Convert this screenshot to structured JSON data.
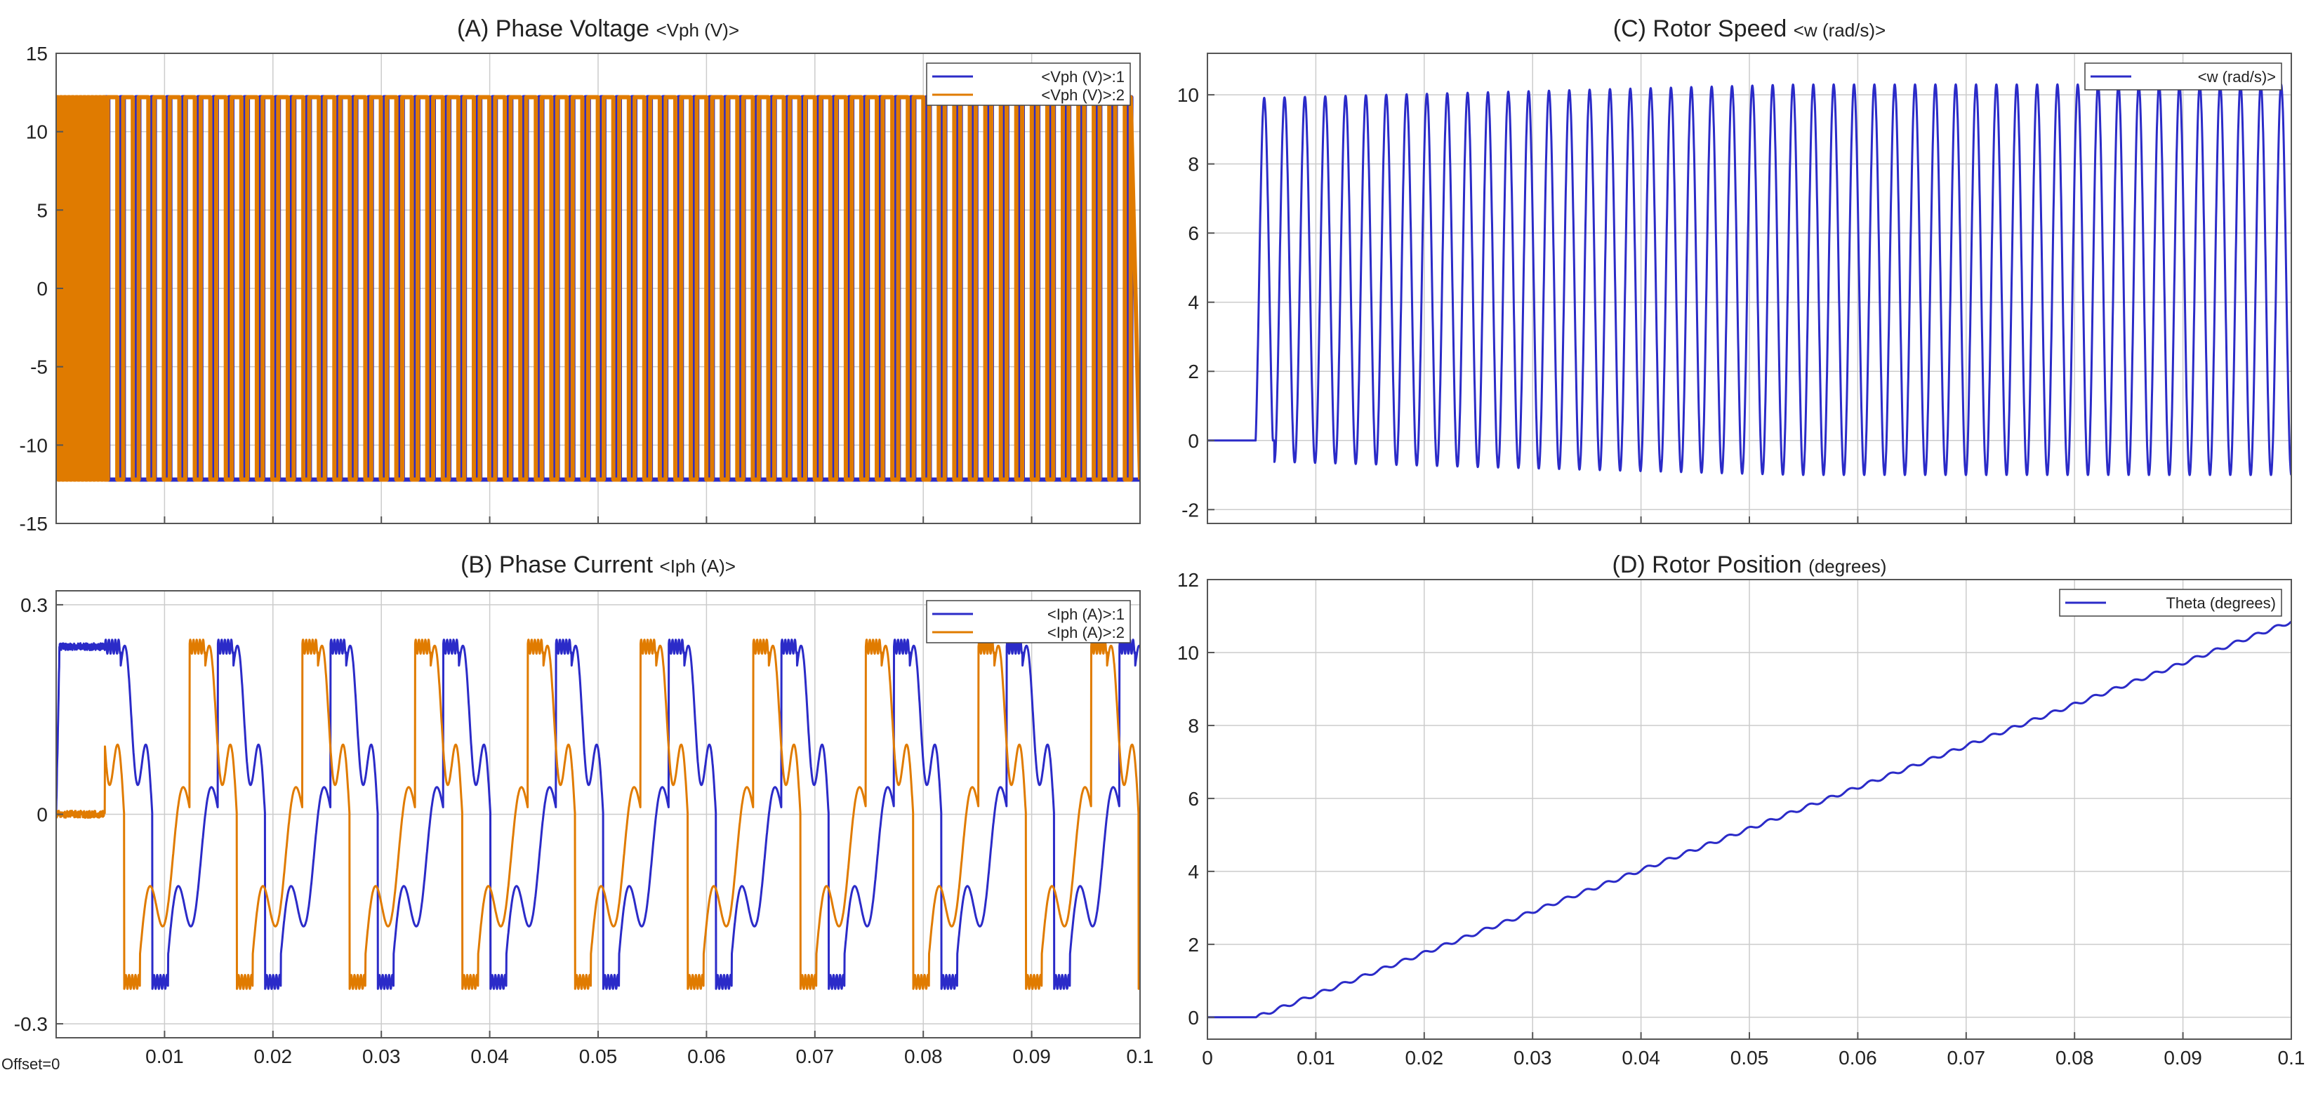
{
  "figure": {
    "offset_label": "Offset=0"
  },
  "colors": {
    "series1": "#2b2bc8",
    "series2": "#e07b00",
    "grid": "#cccccc",
    "axis": "#555555"
  },
  "chart_data": [
    {
      "id": "A",
      "type": "line",
      "signal": "pwm_voltage",
      "title": "(A) Phase Voltage",
      "title_unit": "<Vph (V)>",
      "xlabel": "",
      "ylabel": "",
      "xlim": [
        0,
        0.1
      ],
      "ylim": [
        -15,
        15
      ],
      "yticks": [
        15,
        10,
        5,
        0,
        -5,
        -10,
        -15
      ],
      "xticks": [
        0.01,
        0.02,
        0.03,
        0.04,
        0.05,
        0.06,
        0.07,
        0.08,
        0.09,
        0.1
      ],
      "xtick_labels": [
        "",
        "",
        "",
        "",
        "",
        "",
        "",
        "",
        "",
        ""
      ],
      "grid": true,
      "legend": "top-right",
      "series": [
        {
          "name": "<Vph (V)>:1",
          "color": "#2b2bc8",
          "amplitude": 12.2
        },
        {
          "name": "<Vph (V)>:2",
          "color": "#e07b00",
          "amplitude": 12.2
        }
      ],
      "startup_end": 0.0045,
      "switch_period": 0.00143
    },
    {
      "id": "B",
      "type": "line",
      "signal": "phase_current",
      "title": "(B) Phase Current",
      "title_unit": "<Iph (A)>",
      "xlabel": "",
      "ylabel": "",
      "xlim": [
        0,
        0.1
      ],
      "ylim": [
        -0.32,
        0.32
      ],
      "yticks": [
        0.3,
        0,
        -0.3
      ],
      "xticks": [
        0.01,
        0.02,
        0.03,
        0.04,
        0.05,
        0.06,
        0.07,
        0.08,
        0.09,
        0.1
      ],
      "xtick_labels": [
        "0.01",
        "0.02",
        "0.03",
        "0.04",
        "0.05",
        "0.06",
        "0.07",
        "0.08",
        "0.09",
        "0.1"
      ],
      "grid": true,
      "legend": "top-right",
      "series": [
        {
          "name": "<Iph (A)>:1",
          "color": "#2b2bc8",
          "peak": 0.25,
          "trough": -0.25
        },
        {
          "name": "<Iph (A)>:2",
          "color": "#e07b00",
          "peak": 0.25,
          "trough": -0.25
        }
      ],
      "startup_end": 0.0045,
      "period": 0.0104
    },
    {
      "id": "C",
      "type": "line",
      "signal": "rotor_speed",
      "title": "(C) Rotor Speed",
      "title_unit": "<w (rad/s)>",
      "xlabel": "",
      "ylabel": "",
      "xlim": [
        0,
        0.1
      ],
      "ylim": [
        -2.4,
        11.2
      ],
      "yticks": [
        10,
        8,
        6,
        4,
        2,
        0,
        -2
      ],
      "xticks": [
        0.01,
        0.02,
        0.03,
        0.04,
        0.05,
        0.06,
        0.07,
        0.08,
        0.09,
        0.1
      ],
      "xtick_labels": [
        "",
        "",
        "",
        "",
        "",
        "",
        "",
        "",
        "",
        ""
      ],
      "grid": true,
      "legend": "top-right",
      "series": [
        {
          "name": "<w (rad/s)>",
          "color": "#2b2bc8",
          "min": -1.0,
          "max": 10.3
        }
      ],
      "startup_end": 0.0043,
      "oscillation_count": 51
    },
    {
      "id": "D",
      "type": "line",
      "signal": "rotor_position",
      "title": "(D) Rotor Position",
      "title_unit": "(degrees)",
      "xlabel": "",
      "ylabel": "",
      "xlim": [
        0,
        0.1
      ],
      "ylim": [
        -0.6,
        12
      ],
      "yticks": [
        12,
        10,
        8,
        6,
        4,
        2,
        0
      ],
      "xticks": [
        0,
        0.01,
        0.02,
        0.03,
        0.04,
        0.05,
        0.06,
        0.07,
        0.08,
        0.09,
        0.1
      ],
      "xtick_labels": [
        "0",
        "0.01",
        "0.02",
        "0.03",
        "0.04",
        "0.05",
        "0.06",
        "0.07",
        "0.08",
        "0.09",
        "0.1"
      ],
      "grid": true,
      "legend": "top-right",
      "series": [
        {
          "name": "Theta (degrees)",
          "color": "#2b2bc8",
          "start_value": 0,
          "end_value": 10.85
        }
      ],
      "startup_end": 0.0045,
      "step_count": 51
    }
  ]
}
